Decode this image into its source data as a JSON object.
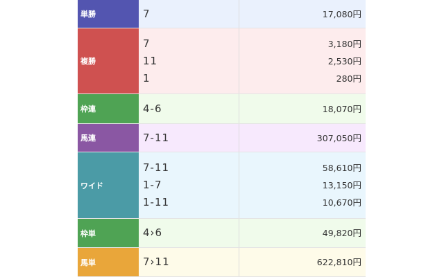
{
  "currency_suffix": "円",
  "rows": [
    {
      "label": "単勝",
      "color": "#5355b0",
      "bg": "#eaf1fd",
      "entries": [
        {
          "combo": "7",
          "payout": "17,080円"
        }
      ]
    },
    {
      "label": "複勝",
      "color": "#cf5150",
      "bg": "#fdeced",
      "entries": [
        {
          "combo": "7",
          "payout": "3,180円"
        },
        {
          "combo": "11",
          "payout": "2,530円"
        },
        {
          "combo": "1",
          "payout": "280円"
        }
      ]
    },
    {
      "label": "枠連",
      "color": "#4fa354",
      "bg": "#f0fbeb",
      "entries": [
        {
          "combo": "4-6",
          "payout": "18,070円"
        }
      ]
    },
    {
      "label": "馬連",
      "color": "#8a57a3",
      "bg": "#f7e9fd",
      "entries": [
        {
          "combo": "7-11",
          "payout": "307,050円"
        }
      ]
    },
    {
      "label": "ワイド",
      "color": "#4b9ba6",
      "bg": "#e9f6fd",
      "entries": [
        {
          "combo": "7-11",
          "payout": "58,610円"
        },
        {
          "combo": "1-7",
          "payout": "13,150円"
        },
        {
          "combo": "1-11",
          "payout": "10,670円"
        }
      ]
    },
    {
      "label": "枠単",
      "color": "#4fa354",
      "bg": "#f0fbeb",
      "entries": [
        {
          "combo": "4›6",
          "payout": "49,820円"
        }
      ]
    },
    {
      "label": "馬単",
      "color": "#e9a63a",
      "bg": "#fefbe9",
      "entries": [
        {
          "combo": "7›11",
          "payout": "622,810円"
        }
      ]
    }
  ]
}
